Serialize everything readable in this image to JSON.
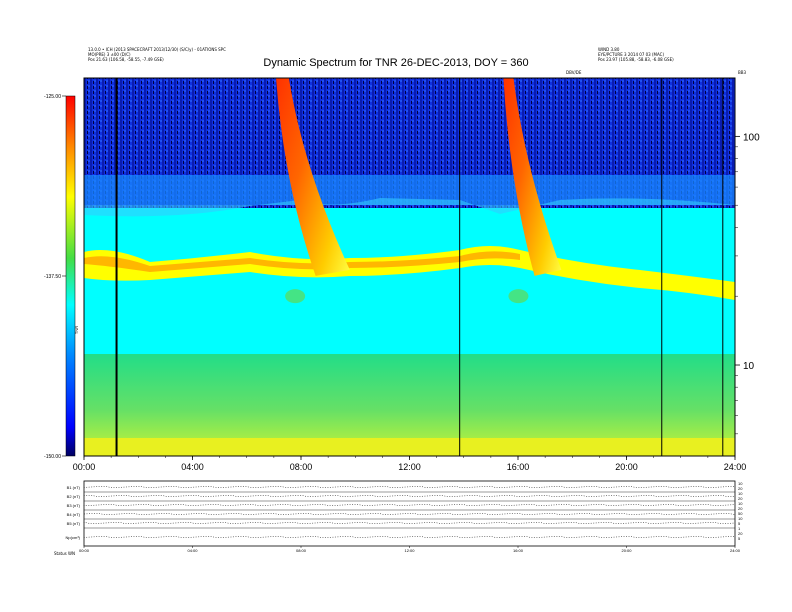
{
  "chart_data": {
    "type": "heatmap",
    "title": "Dynamic Spectrum for TNR 26-DEC-2013, DOY = 360",
    "header_left": [
      "13.0.0 • ICH (2013 SPACECRAFT 2013/12/30) (S/C/y) - 01ATIONS SPC",
      "MO(PRE) 3 ±00 (D/C)",
      "Pos    21.63 (106.58, -58.55, -7.49 GSE)"
    ],
    "header_right": [
      "WIND 3.80",
      "EYE/PCTURE 3 2014 07 03 (MAC)",
      "Pos    23.97 (105.88, -58.83, -6.08 GSE)"
    ],
    "header_mid_small": "DBV/DE",
    "header_right_small": "BB3",
    "xlabel": "",
    "ylabel": "",
    "x_ticks": [
      "00:00",
      "04:00",
      "08:00",
      "12:00",
      "16:00",
      "20:00",
      "24:00"
    ],
    "x_range_hours": [
      0,
      24
    ],
    "y_scale": "log",
    "y_ticks": [
      "100",
      "10"
    ],
    "y_range": [
      4,
      180
    ],
    "colorbar": {
      "ticks": [
        "-125.00",
        "-137.50",
        "-150.00"
      ],
      "range": [
        -150,
        -125
      ],
      "label": "TNR",
      "colors": [
        "#000060",
        "#0000ff",
        "#0088ff",
        "#00ffff",
        "#44dd44",
        "#ffff00",
        "#ff8800",
        "#ff0000"
      ]
    },
    "vertical_markers_hours": [
      1.2,
      13.85,
      21.3,
      23.55
    ],
    "bursts": [
      {
        "start_hour": 7.0,
        "end_hour": 9.8,
        "peak_freq": 150
      },
      {
        "start_hour": 15.4,
        "end_hour": 17.6,
        "peak_freq": 150
      }
    ],
    "bottom_panel": {
      "row_labels": [
        "B1 (nT)",
        "B2 (nT)",
        "B3 (nT)",
        "B4 (nT)",
        "B5 (nT)",
        "Np(cm³)"
      ],
      "right_labels": [
        "10",
        "20",
        "10",
        "20",
        "10",
        "20",
        "50",
        "10",
        "5",
        "1",
        "20",
        "5"
      ],
      "x_ticks": [
        "00:00",
        "04:00",
        "08:00",
        "12:00",
        "16:00",
        "20:00",
        "24:00"
      ],
      "footer": "Status    WN"
    }
  }
}
